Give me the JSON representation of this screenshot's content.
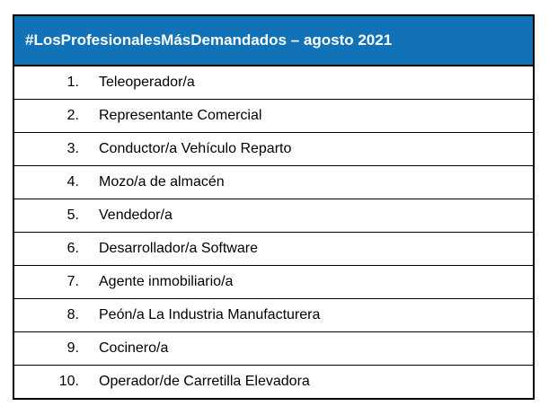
{
  "table": {
    "title": "#LosProfesionalesMásDemandados – agosto 2021",
    "colors": {
      "header_bg": "#1272B8",
      "header_text": "#FFFFFF",
      "border": "#000000",
      "row_text": "#000000"
    },
    "rows": [
      {
        "num": "1.",
        "label": "Teleoperador/a"
      },
      {
        "num": "2.",
        "label": "Representante Comercial"
      },
      {
        "num": "3.",
        "label": "Conductor/a Vehículo Reparto"
      },
      {
        "num": "4.",
        "label": "Mozo/a de almacén"
      },
      {
        "num": "5.",
        "label": "Vendedor/a"
      },
      {
        "num": "6.",
        "label": "Desarrollador/a Software"
      },
      {
        "num": "7.",
        "label": "Agente inmobiliario/a"
      },
      {
        "num": "8.",
        "label": "Peón/a La Industria Manufacturera"
      },
      {
        "num": "9.",
        "label": "Cocinero/a"
      },
      {
        "num": "10.",
        "label": "Operador/de Carretilla Elevadora"
      }
    ]
  }
}
